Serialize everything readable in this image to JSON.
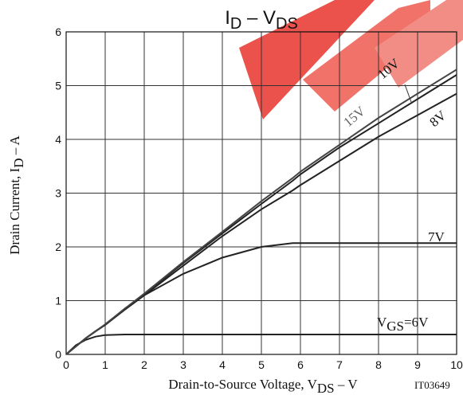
{
  "chart_data": {
    "type": "line",
    "title_parts": [
      "I",
      "D",
      " – V",
      "DS"
    ],
    "x_label_parts": [
      "Drain-to-Source Voltage, V",
      "DS",
      " – V"
    ],
    "y_label_parts": [
      "Drain Current, I",
      "D",
      " – A"
    ],
    "annotation": "IT03649",
    "label_prefix_parts": [
      "V",
      "GS",
      "="
    ],
    "x": [
      0,
      0.25,
      0.5,
      0.75,
      1,
      1.5,
      2,
      3,
      4,
      5,
      5.8,
      6,
      7,
      8,
      9,
      10
    ],
    "series": [
      {
        "name": "6V",
        "color": "#222222",
        "values": [
          0,
          0.17,
          0.27,
          0.33,
          0.36,
          0.37,
          0.37,
          0.37,
          0.37,
          0.37,
          0.37,
          0.37,
          0.37,
          0.37,
          0.37,
          0.37
        ]
      },
      {
        "name": "7V",
        "color": "#222222",
        "values": [
          0,
          0.15,
          0.3,
          0.43,
          0.55,
          0.85,
          1.1,
          1.5,
          1.8,
          2.0,
          2.07,
          2.07,
          2.07,
          2.07,
          2.07,
          2.07
        ]
      },
      {
        "name": "8V",
        "color": "#222222",
        "values": [
          0,
          0.15,
          0.3,
          0.43,
          0.55,
          0.83,
          1.1,
          1.65,
          2.2,
          2.7,
          3.05,
          3.15,
          3.6,
          4.05,
          4.45,
          4.85
        ]
      },
      {
        "name": "10V",
        "color": "#222222",
        "values": [
          0,
          0.15,
          0.3,
          0.43,
          0.55,
          0.84,
          1.12,
          1.7,
          2.25,
          2.8,
          3.23,
          3.35,
          3.85,
          4.3,
          4.75,
          5.2
        ]
      },
      {
        "name": "15V",
        "color": "#444444",
        "values": [
          0,
          0.15,
          0.3,
          0.43,
          0.56,
          0.85,
          1.13,
          1.72,
          2.28,
          2.85,
          3.28,
          3.4,
          3.9,
          4.4,
          4.85,
          5.3
        ]
      }
    ],
    "xlim": [
      0,
      10
    ],
    "xticks": [
      0,
      1,
      2,
      3,
      4,
      5,
      6,
      7,
      8,
      9,
      10
    ],
    "ylim": [
      0,
      6
    ],
    "yticks": [
      0,
      1,
      2,
      3,
      4,
      5,
      6
    ],
    "grid": true
  }
}
